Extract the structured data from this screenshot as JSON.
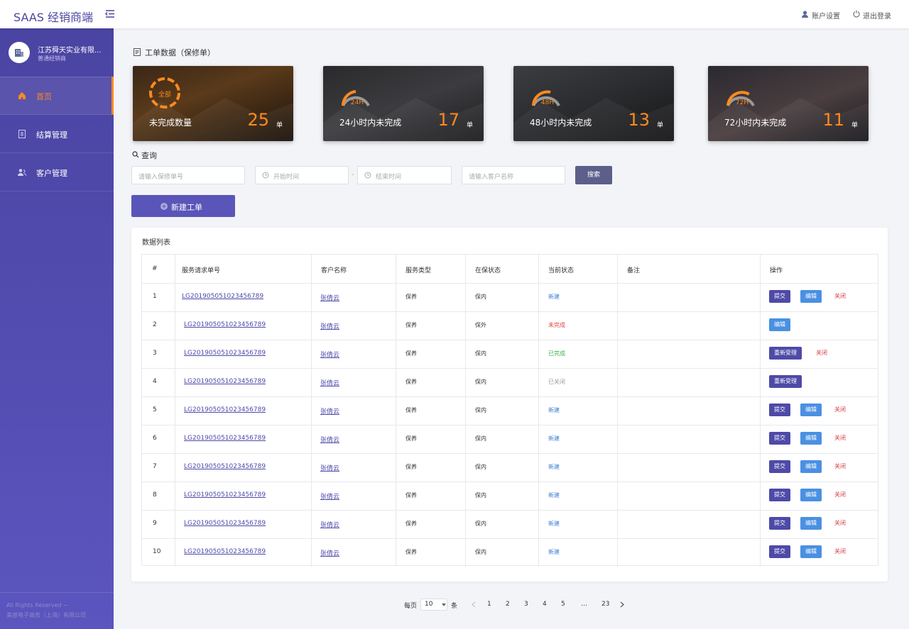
{
  "header": {
    "brand": "SAAS 经销商端",
    "account_settings": "账户设置",
    "logout": "退出登录"
  },
  "sidebar": {
    "company": "江苏舜天实业有限...",
    "role": "普通经销商",
    "menu": [
      "首页",
      "结算管理",
      "客户管理"
    ],
    "active": 0,
    "footer": [
      "All Rights Reserved ~",
      "美感电子商务（上海）有限公司"
    ]
  },
  "stats": {
    "title": "工单数据（保修单）",
    "cards": [
      {
        "badge": "全部",
        "label": "未完成数量",
        "count": 25,
        "unit": "单"
      },
      {
        "badge": "24H",
        "label": "24小时内未完成",
        "count": 17,
        "unit": "单"
      },
      {
        "badge": "48H",
        "label": "48小时内未完成",
        "count": 13,
        "unit": "单"
      },
      {
        "badge": "72H",
        "label": "72小时内未完成",
        "count": 11,
        "unit": "单"
      }
    ]
  },
  "query": {
    "title": "查询",
    "order_placeholder": "请输入保修单号",
    "start_placeholder": "开始时间",
    "range_separator": "-",
    "end_placeholder": "结束时间",
    "customer_placeholder": "请输入客户名称",
    "search": "搜索",
    "create": "新建工单"
  },
  "table": {
    "title": "数据列表",
    "columns": [
      "#",
      "服务请求单号",
      "客户名称",
      "服务类型",
      "在保状态",
      "当前状态",
      "备注",
      "操作"
    ],
    "rows": [
      {
        "index": 1,
        "id": "LG201905051023456789",
        "customer": "张倩云",
        "service": "保养",
        "warranty": "保内",
        "status": "新建",
        "status_color": "#3a7fd5",
        "actions": [
          {
            "label": "提交",
            "style": "primary"
          },
          {
            "label": "编辑",
            "style": "info"
          },
          {
            "label": "关闭",
            "style": "danger"
          }
        ]
      },
      {
        "index": 2,
        "id": "LG201905051023456789",
        "customer": "张倩云",
        "service": "保养",
        "warranty": "保外",
        "status": "未完成",
        "status_color": "#e0463f",
        "actions": [
          {
            "label": "编辑",
            "style": "info"
          }
        ]
      },
      {
        "index": 3,
        "id": "LG201905051023456789",
        "customer": "张倩云",
        "service": "保养",
        "warranty": "保内",
        "status": "已完成",
        "status_color": "#3bb34a",
        "actions": [
          {
            "label": "重新受理",
            "style": "primary"
          },
          {
            "label": "关闭",
            "style": "danger"
          }
        ]
      },
      {
        "index": 4,
        "id": "LG201905051023456789",
        "customer": "张倩云",
        "service": "保养",
        "warranty": "保内",
        "status": "已关闭",
        "status_color": "#999999",
        "actions": [
          {
            "label": "重新受理",
            "style": "primary"
          }
        ]
      },
      {
        "index": 5,
        "id": "LG201905051023456789",
        "customer": "张倩云",
        "service": "保养",
        "warranty": "保内",
        "status": "新建",
        "status_color": "#3a7fd5",
        "actions": [
          {
            "label": "提交",
            "style": "primary"
          },
          {
            "label": "编辑",
            "style": "info"
          },
          {
            "label": "关闭",
            "style": "danger"
          }
        ]
      },
      {
        "index": 6,
        "id": "LG201905051023456789",
        "customer": "张倩云",
        "service": "保养",
        "warranty": "保内",
        "status": "新建",
        "status_color": "#3a7fd5",
        "actions": [
          {
            "label": "提交",
            "style": "primary"
          },
          {
            "label": "编辑",
            "style": "info"
          },
          {
            "label": "关闭",
            "style": "danger"
          }
        ]
      },
      {
        "index": 7,
        "id": "LG201905051023456789",
        "customer": "张倩云",
        "service": "保养",
        "warranty": "保内",
        "status": "新建",
        "status_color": "#3a7fd5",
        "actions": [
          {
            "label": "提交",
            "style": "primary"
          },
          {
            "label": "编辑",
            "style": "info"
          },
          {
            "label": "关闭",
            "style": "danger"
          }
        ]
      },
      {
        "index": 8,
        "id": "LG201905051023456789",
        "customer": "张倩云",
        "service": "保养",
        "warranty": "保内",
        "status": "新建",
        "status_color": "#3a7fd5",
        "actions": [
          {
            "label": "提交",
            "style": "primary"
          },
          {
            "label": "编辑",
            "style": "info"
          },
          {
            "label": "关闭",
            "style": "danger"
          }
        ]
      },
      {
        "index": 9,
        "id": "LG201905051023456789",
        "customer": "张倩云",
        "service": "保养",
        "warranty": "保内",
        "status": "新建",
        "status_color": "#3a7fd5",
        "actions": [
          {
            "label": "提交",
            "style": "primary"
          },
          {
            "label": "编辑",
            "style": "info"
          },
          {
            "label": "关闭",
            "style": "danger"
          }
        ]
      },
      {
        "index": 10,
        "id": "LG201905051023456789",
        "customer": "张倩云",
        "service": "保养",
        "warranty": "保内",
        "status": "新建",
        "status_color": "#3a7fd5",
        "actions": [
          {
            "label": "提交",
            "style": "primary"
          },
          {
            "label": "编辑",
            "style": "info"
          },
          {
            "label": "关闭",
            "style": "danger"
          }
        ]
      }
    ]
  },
  "pagination": {
    "per_page_label": "每页",
    "page_size": 10,
    "unit": "条",
    "pages": [
      "1",
      "2",
      "3",
      "4",
      "5",
      "…",
      "23"
    ]
  }
}
